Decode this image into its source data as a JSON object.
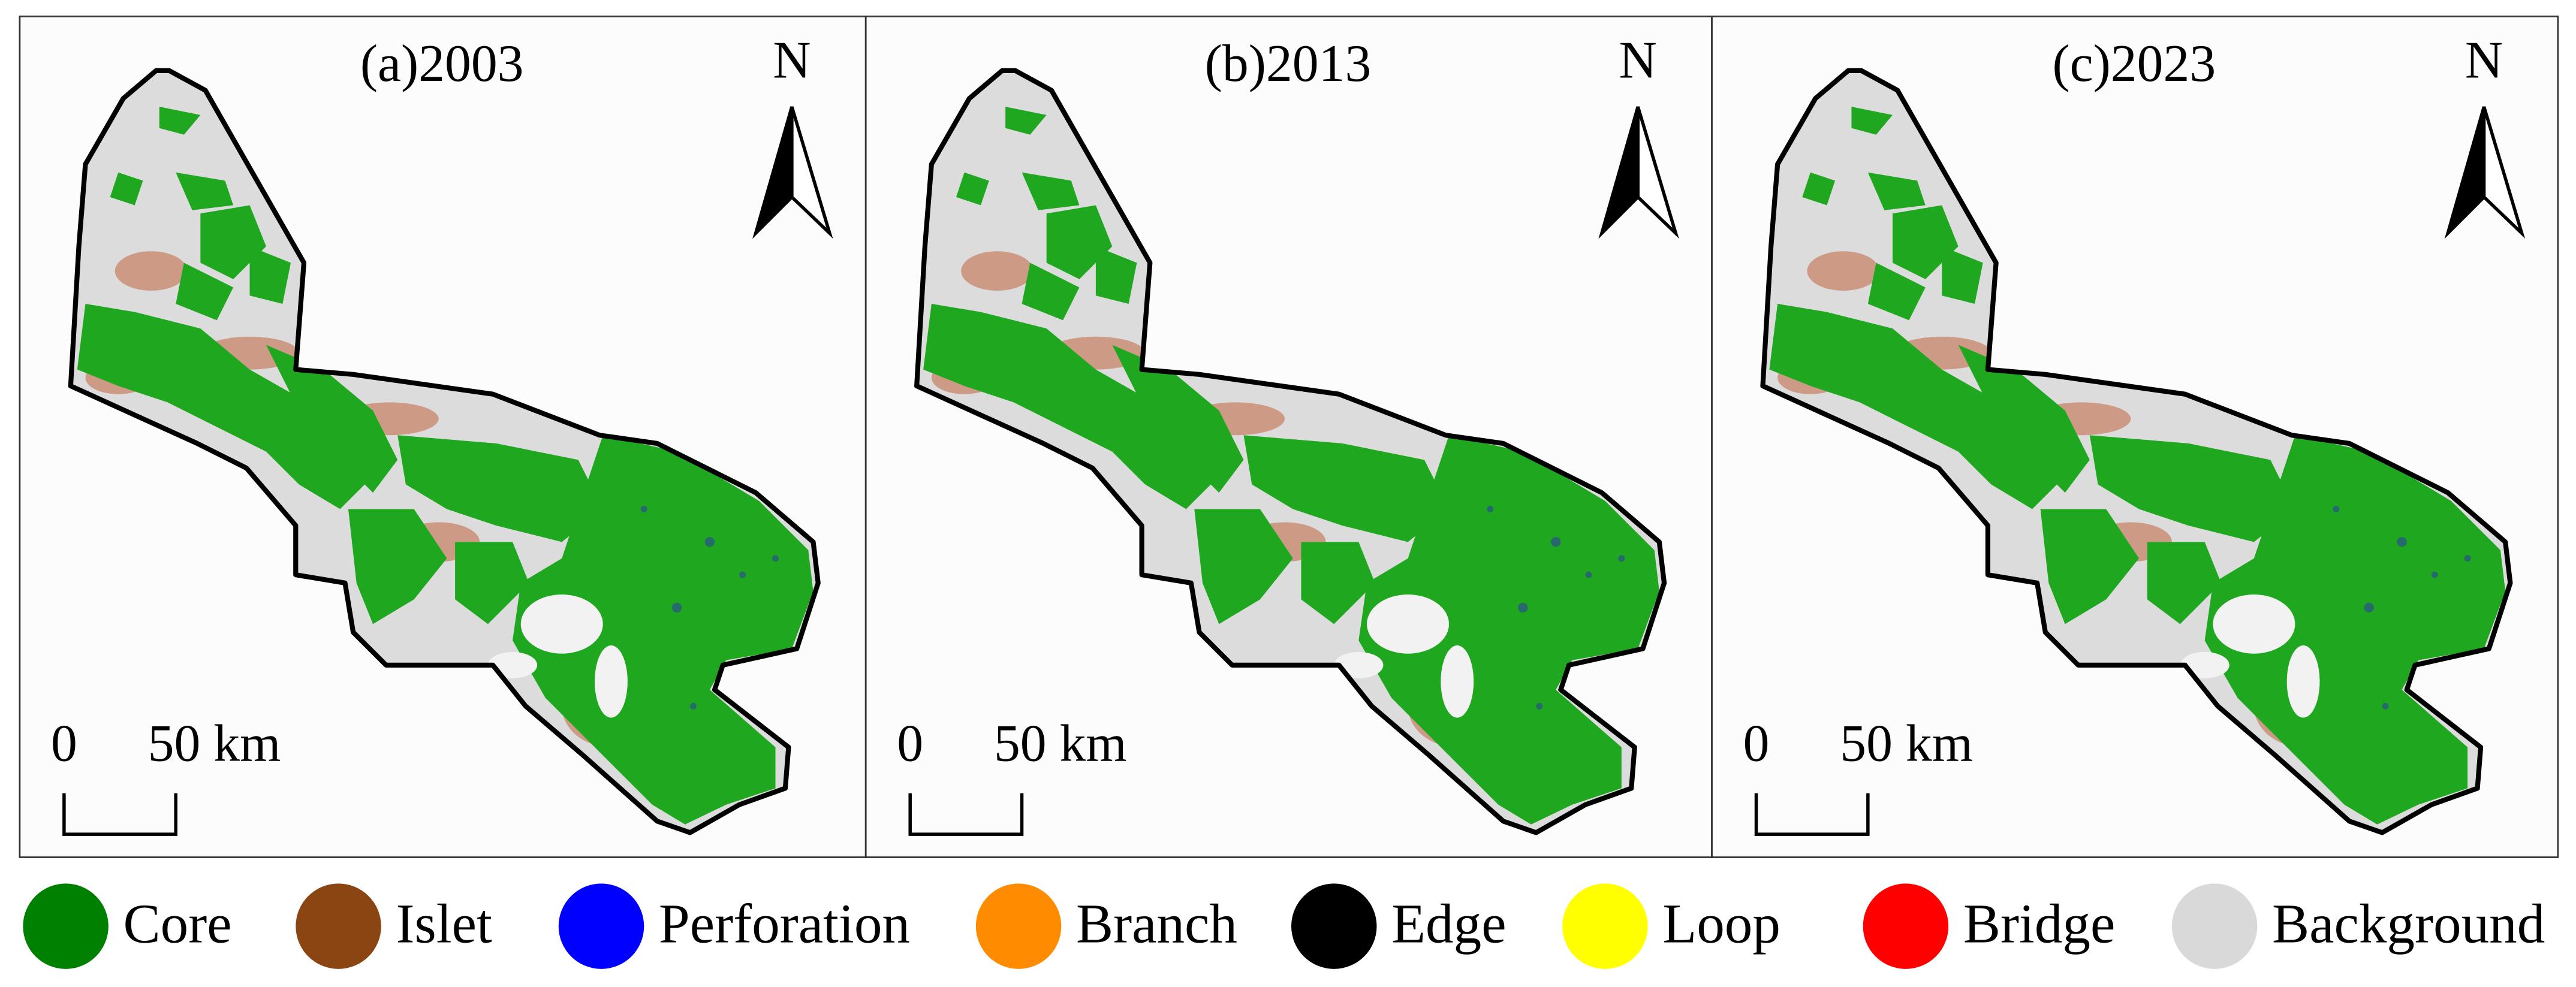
{
  "panels": [
    {
      "title": "(a)2003",
      "north": "N",
      "scale_start": "0",
      "scale_end": "50 km"
    },
    {
      "title": "(b)2013",
      "north": "N",
      "scale_start": "0",
      "scale_end": "50 km"
    },
    {
      "title": "(c)2023",
      "north": "N",
      "scale_start": "0",
      "scale_end": "50 km"
    }
  ],
  "legend": [
    {
      "label": "Core",
      "color": "#008000"
    },
    {
      "label": "Islet",
      "color": "#8b4513"
    },
    {
      "label": "Perforation",
      "color": "#0000ff"
    },
    {
      "label": "Branch",
      "color": "#ff8c00"
    },
    {
      "label": "Edge",
      "color": "#000000"
    },
    {
      "label": "Loop",
      "color": "#ffff00"
    },
    {
      "label": "Bridge",
      "color": "#ff0000"
    },
    {
      "label": "Background",
      "color": "#d9d9d9"
    }
  ]
}
